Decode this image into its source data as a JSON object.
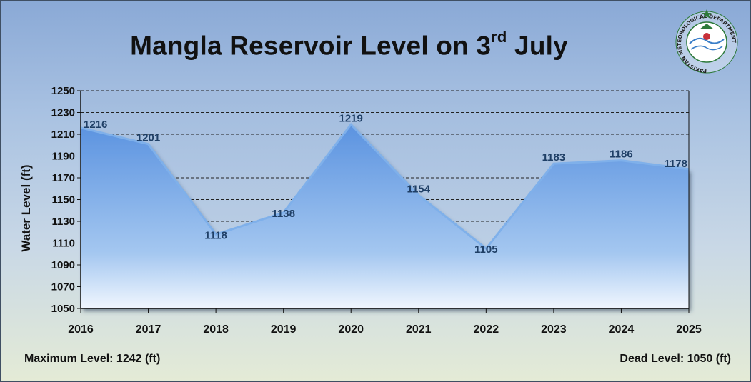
{
  "header": {
    "title_main": "Mangla Reservoir Level on 3",
    "title_sup": "rd",
    "title_end": " July"
  },
  "logo": {
    "icon": "pakistan-meteorological-department-seal-icon",
    "text": "PAKISTAN METEOROLOGICAL DEPARTMENT"
  },
  "footer": {
    "max_level": "Maximum Level: 1242 (ft)",
    "dead_level": "Dead Level: 1050 (ft)"
  },
  "colors": {
    "area_top": "#5b93e0",
    "area_bottom": "#e6f1fc",
    "line": "#7fb0ea",
    "label": "#1f3f66",
    "grid": "#222222"
  },
  "chart_data": {
    "type": "area",
    "title": "Mangla Reservoir Level on 3rd July",
    "xlabel": "",
    "ylabel": "Water Level (ft)",
    "categories": [
      "2016",
      "2017",
      "2018",
      "2019",
      "2020",
      "2021",
      "2022",
      "2023",
      "2024",
      "2025"
    ],
    "values": [
      1216,
      1201,
      1118,
      1138,
      1219,
      1154,
      1105,
      1183,
      1186,
      1178
    ],
    "data_labels": [
      "1216",
      "1201",
      "1118",
      "1138",
      "1219",
      "1154",
      "1105",
      "1183",
      "1186",
      "1178"
    ],
    "ylim": [
      1050,
      1250
    ],
    "yticks": [
      1050,
      1070,
      1090,
      1110,
      1130,
      1150,
      1170,
      1190,
      1210,
      1230,
      1250
    ],
    "grid": "dashed horizontal",
    "legend": "none"
  }
}
